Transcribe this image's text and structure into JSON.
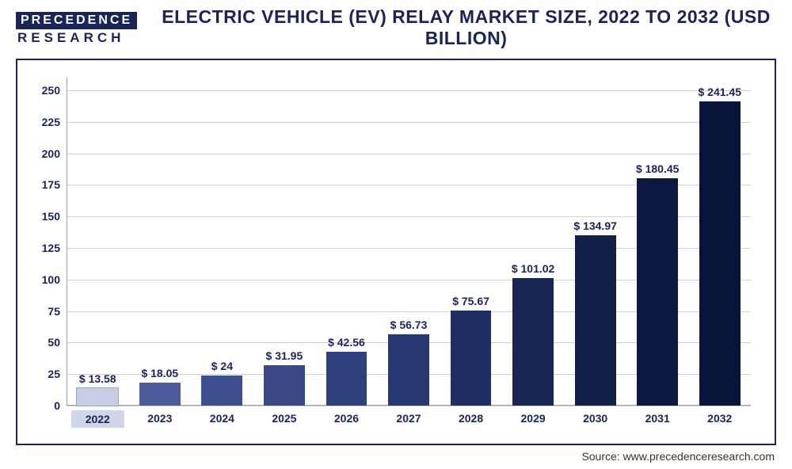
{
  "logo": {
    "top": "PRECEDENCE",
    "bottom": "RESEARCH"
  },
  "title": "ELECTRIC VEHICLE (EV) RELAY MARKET SIZE, 2022 TO 2032 (USD BILLION)",
  "source": "Source: www.precedenceresearch.com",
  "chart": {
    "type": "bar",
    "ylim": [
      0,
      260
    ],
    "ytick_step": 25,
    "yticks": [
      0,
      25,
      50,
      75,
      100,
      125,
      150,
      175,
      200,
      225,
      250
    ],
    "grid_color": "#cfcfcf",
    "background_color": "#ffffff",
    "label_color": "#1a2456",
    "label_fontsize": 14,
    "value_prefix": "$ ",
    "bar_width_ratio": 0.66,
    "categories": [
      "2022",
      "2023",
      "2024",
      "2025",
      "2026",
      "2027",
      "2028",
      "2029",
      "2030",
      "2031",
      "2032"
    ],
    "values": [
      13.58,
      18.05,
      24,
      31.95,
      42.56,
      56.73,
      75.67,
      101.02,
      134.97,
      180.45,
      241.45
    ],
    "value_labels": [
      "$ 13.58",
      "$ 18.05",
      "$ 24",
      "$ 31.95",
      "$ 42.56",
      "$ 56.73",
      "$ 75.67",
      "$ 101.02",
      "$ 134.97",
      "$ 180.45",
      "$ 241.45"
    ],
    "bar_colors": [
      "#c7cde4",
      "#4a5a9a",
      "#3f4e8e",
      "#3a4886",
      "#30407c",
      "#283871",
      "#1f2e63",
      "#182654",
      "#121f48",
      "#0d1840",
      "#0a1438"
    ]
  }
}
